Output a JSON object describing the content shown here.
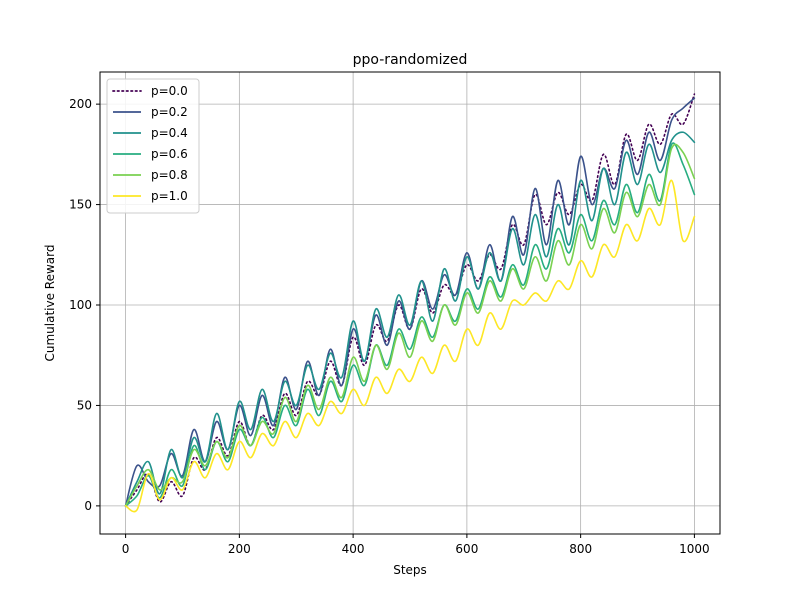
{
  "chart_data": {
    "type": "line",
    "title": "ppo-randomized",
    "xlabel": "Steps",
    "ylabel": "Cumulative Reward",
    "xlim": [
      -45,
      1045
    ],
    "ylim": [
      -14,
      216
    ],
    "xticks": [
      0,
      200,
      400,
      600,
      800,
      1000
    ],
    "yticks": [
      0,
      50,
      100,
      150,
      200
    ],
    "grid": true,
    "legend_position": "top-left",
    "x": [
      0,
      20,
      40,
      60,
      80,
      100,
      120,
      140,
      160,
      180,
      200,
      220,
      240,
      260,
      280,
      300,
      320,
      340,
      360,
      380,
      400,
      420,
      440,
      460,
      480,
      500,
      520,
      540,
      560,
      580,
      600,
      620,
      640,
      660,
      680,
      700,
      720,
      740,
      760,
      780,
      800,
      820,
      840,
      860,
      880,
      900,
      920,
      940,
      960,
      980,
      1000
    ],
    "series": [
      {
        "name": "p=0.0",
        "color": "#440154",
        "dash": "dotted",
        "values": [
          0,
          8,
          16,
          2,
          12,
          5,
          24,
          18,
          34,
          25,
          42,
          30,
          45,
          38,
          56,
          45,
          62,
          55,
          72,
          60,
          84,
          70,
          90,
          82,
          100,
          88,
          108,
          96,
          110,
          105,
          120,
          112,
          125,
          118,
          140,
          130,
          155,
          140,
          156,
          145,
          160,
          152,
          175,
          160,
          185,
          172,
          190,
          180,
          195,
          190,
          205
        ]
      },
      {
        "name": "p=0.2",
        "color": "#3b528b",
        "dash": "solid",
        "values": [
          0,
          20,
          12,
          10,
          26,
          15,
          38,
          22,
          42,
          28,
          50,
          35,
          55,
          40,
          64,
          48,
          72,
          55,
          78,
          60,
          88,
          72,
          95,
          80,
          102,
          88,
          112,
          98,
          115,
          105,
          126,
          108,
          130,
          112,
          144,
          125,
          158,
          130,
          162,
          140,
          174,
          150,
          168,
          158,
          182,
          165,
          186,
          172,
          192,
          198,
          203
        ]
      },
      {
        "name": "p=0.4",
        "color": "#21918c",
        "dash": "solid",
        "values": [
          0,
          12,
          22,
          6,
          28,
          14,
          34,
          22,
          46,
          28,
          52,
          38,
          58,
          42,
          62,
          50,
          70,
          58,
          76,
          64,
          92,
          72,
          98,
          84,
          105,
          90,
          112,
          92,
          118,
          102,
          124,
          108,
          126,
          112,
          138,
          120,
          145,
          124,
          150,
          130,
          162,
          142,
          168,
          150,
          176,
          160,
          180,
          166,
          182,
          186,
          181
        ]
      },
      {
        "name": "p=0.6",
        "color": "#27ad81",
        "dash": "solid",
        "values": [
          0,
          5,
          15,
          4,
          18,
          10,
          30,
          18,
          32,
          22,
          38,
          30,
          44,
          34,
          50,
          40,
          58,
          45,
          62,
          52,
          70,
          60,
          80,
          70,
          88,
          78,
          94,
          84,
          100,
          92,
          108,
          98,
          114,
          104,
          120,
          110,
          130,
          118,
          138,
          126,
          145,
          132,
          152,
          140,
          160,
          146,
          165,
          152,
          180,
          170,
          155
        ]
      },
      {
        "name": "p=0.8",
        "color": "#7ad151",
        "dash": "solid",
        "values": [
          0,
          10,
          18,
          8,
          14,
          12,
          28,
          20,
          32,
          24,
          40,
          30,
          42,
          36,
          54,
          42,
          60,
          48,
          64,
          54,
          74,
          62,
          80,
          68,
          86,
          74,
          92,
          82,
          100,
          90,
          106,
          96,
          112,
          102,
          118,
          108,
          124,
          112,
          132,
          120,
          140,
          128,
          148,
          136,
          156,
          144,
          160,
          150,
          178,
          176,
          163
        ]
      },
      {
        "name": "p=1.0",
        "color": "#fde725",
        "dash": "solid",
        "values": [
          0,
          -2,
          16,
          3,
          14,
          8,
          22,
          14,
          26,
          18,
          32,
          24,
          36,
          30,
          42,
          34,
          46,
          40,
          52,
          46,
          58,
          50,
          64,
          56,
          68,
          62,
          74,
          66,
          80,
          72,
          88,
          80,
          96,
          88,
          102,
          100,
          106,
          102,
          112,
          108,
          122,
          114,
          130,
          124,
          140,
          132,
          148,
          140,
          162,
          132,
          144
        ]
      }
    ]
  }
}
